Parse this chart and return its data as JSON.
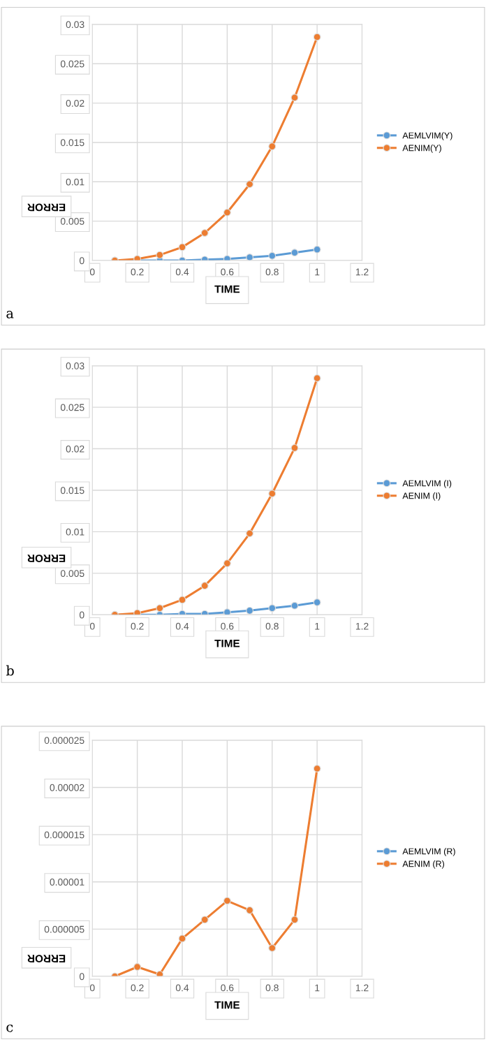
{
  "chart_data": [
    {
      "type": "line",
      "xlabel": "TIME",
      "ylabel": "ERROR",
      "annotations": [
        "a"
      ],
      "x": [
        0.1,
        0.2,
        0.3,
        0.4,
        0.5,
        0.6,
        0.7,
        0.8,
        0.9,
        1.0
      ],
      "series": [
        {
          "name": "AEMLVIM(Y)",
          "color": "#5b9bd5",
          "values": [
            0,
            0,
            0,
            0,
            0.0001,
            0.0002,
            0.0004,
            0.0006,
            0.001,
            0.0014
          ]
        },
        {
          "name": "AENIM(Y)",
          "color": "#ed7d31",
          "values": [
            0,
            0.0002,
            0.0007,
            0.0017,
            0.0035,
            0.0061,
            0.0097,
            0.0145,
            0.0207,
            0.0284
          ]
        }
      ],
      "xlim": [
        0,
        1.2
      ],
      "xticks": [
        0,
        0.2,
        0.4,
        0.6,
        0.8,
        1,
        1.2
      ],
      "ylim": [
        0,
        0.03
      ],
      "yticks": [
        0,
        0.005,
        0.01,
        0.015,
        0.02,
        0.025,
        0.03
      ],
      "grid": true,
      "legend": "right",
      "marker": "circle",
      "line_style": "solid"
    },
    {
      "type": "line",
      "xlabel": "TIME",
      "ylabel": "ERROR",
      "annotations": [
        "b"
      ],
      "x": [
        0.1,
        0.2,
        0.3,
        0.4,
        0.5,
        0.6,
        0.7,
        0.8,
        0.9,
        1.0
      ],
      "series": [
        {
          "name": "AEMLVIM (I)",
          "color": "#5b9bd5",
          "values": [
            0,
            0,
            0,
            0.0001,
            0.0001,
            0.0003,
            0.0005,
            0.0008,
            0.0011,
            0.0015
          ]
        },
        {
          "name": "AENIM (I)",
          "color": "#ed7d31",
          "values": [
            0,
            0.0002,
            0.0008,
            0.0018,
            0.0035,
            0.0062,
            0.0098,
            0.0146,
            0.0201,
            0.0285
          ]
        }
      ],
      "xlim": [
        0,
        1.2
      ],
      "xticks": [
        0,
        0.2,
        0.4,
        0.6,
        0.8,
        1,
        1.2
      ],
      "ylim": [
        0,
        0.03
      ],
      "yticks": [
        0,
        0.005,
        0.01,
        0.015,
        0.02,
        0.025,
        0.03
      ],
      "grid": true,
      "legend": "right",
      "marker": "circle",
      "line_style": "solid"
    },
    {
      "type": "line",
      "xlabel": "TIME",
      "ylabel": "ERROR",
      "annotations": [
        "c"
      ],
      "x": [
        0.1,
        0.2,
        0.3,
        0.4,
        0.5,
        0.6,
        0.7,
        0.8,
        0.9,
        1.0
      ],
      "series": [
        {
          "name": "AEMLVIM (R)",
          "color": "#5b9bd5",
          "values": [
            null,
            null,
            null,
            null,
            null,
            null,
            null,
            null,
            null,
            null
          ]
        },
        {
          "name": "AENIM (R)",
          "color": "#ed7d31",
          "values": [
            0,
            1e-06,
            2e-07,
            4e-06,
            6e-06,
            8e-06,
            7e-06,
            3e-06,
            6e-06,
            2.2e-05
          ]
        }
      ],
      "xlim": [
        0,
        1.2
      ],
      "xticks": [
        0,
        0.2,
        0.4,
        0.6,
        0.8,
        1,
        1.2
      ],
      "ylim": [
        0,
        2.5e-05
      ],
      "yticks": [
        {
          "value": 0,
          "label": "0"
        },
        {
          "value": 5e-06,
          "label": "0.000005"
        },
        {
          "value": 1e-05,
          "label": "0.00001"
        },
        {
          "value": 1.5e-05,
          "label": "0.000015"
        },
        {
          "value": 2e-05,
          "label": "0.00002"
        },
        {
          "value": 2.5e-05,
          "label": "0.000025"
        }
      ],
      "grid": true,
      "legend": "right",
      "marker": "circle",
      "line_style": "solid"
    }
  ]
}
